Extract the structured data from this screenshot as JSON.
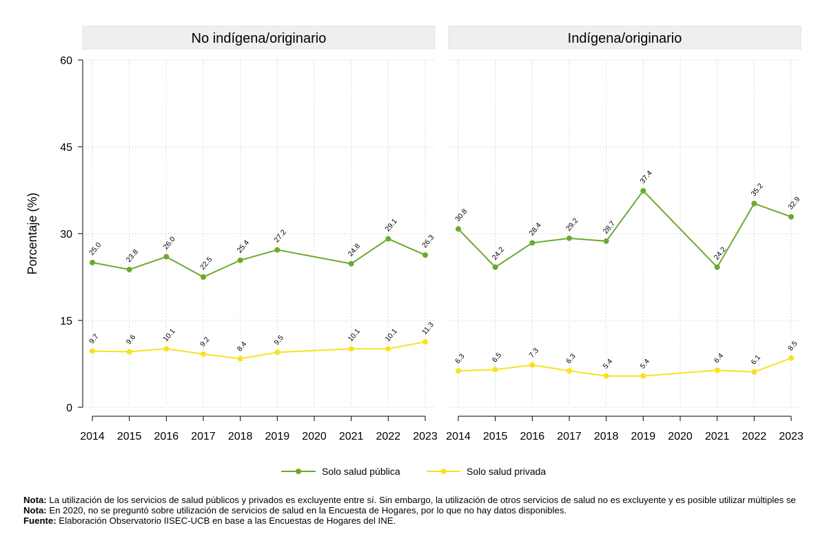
{
  "chart_data": {
    "type": "line",
    "ylabel": "Porcentaje (%)",
    "ylim": [
      0,
      60
    ],
    "yticks": [
      0,
      15,
      30,
      45,
      60
    ],
    "categories": [
      "2014",
      "2015",
      "2016",
      "2017",
      "2018",
      "2019",
      "2020",
      "2021",
      "2022",
      "2023"
    ],
    "grid": true,
    "legend_position": "bottom",
    "series_styles": {
      "Solo salud pública": {
        "color": "#6aaa2c"
      },
      "Solo salud privada": {
        "color": "#f7e21f"
      }
    },
    "panels": [
      {
        "title": "No indígena/originario",
        "series": [
          {
            "name": "Solo salud pública",
            "values": [
              25.0,
              23.8,
              26.0,
              22.5,
              25.4,
              27.2,
              null,
              24.8,
              29.1,
              26.3
            ],
            "labels": [
              "25.0",
              "23.8",
              "26.0",
              "22.5",
              "25.4",
              "27.2",
              null,
              "24.8",
              "29.1",
              "26.3"
            ]
          },
          {
            "name": "Solo salud privada",
            "values": [
              9.7,
              9.6,
              10.1,
              9.2,
              8.4,
              9.5,
              null,
              10.1,
              10.1,
              11.3
            ],
            "labels": [
              "9.7",
              "9.6",
              "10.1",
              "9.2",
              "8.4",
              "9.5",
              null,
              "10.1",
              "10.1",
              "11.3"
            ]
          }
        ]
      },
      {
        "title": "Indígena/originario",
        "series": [
          {
            "name": "Solo salud pública",
            "values": [
              30.8,
              24.2,
              28.4,
              29.2,
              28.7,
              37.4,
              null,
              24.2,
              35.2,
              32.9
            ],
            "labels": [
              "30.8",
              "24.2",
              "28.4",
              "29.2",
              "28.7",
              "37.4",
              null,
              "24.2",
              "35.2",
              "32.9"
            ]
          },
          {
            "name": "Solo salud privada",
            "values": [
              6.3,
              6.5,
              7.3,
              6.3,
              5.4,
              5.4,
              null,
              6.4,
              6.1,
              8.5
            ],
            "labels": [
              "6.3",
              "6.5",
              "7.3",
              "6.3",
              "5.4",
              "5.4",
              null,
              "6.4",
              "6.1",
              "8.5"
            ]
          }
        ]
      }
    ],
    "legend": [
      "Solo salud pública",
      "Solo salud privada"
    ]
  },
  "notes": [
    {
      "label": "Nota:",
      "text": " La utilización de los servicios de salud públicos y privados es excluyente entre sí. Sin embargo, la utilización de otros servicios de salud no es excluyente y es posible utilizar múltiples se"
    },
    {
      "label": "Nota:",
      "text": " En 2020, no se preguntó sobre utilización de servicios de salud en la Encuesta de Hogares, por lo que no hay datos disponibles."
    },
    {
      "label": "Fuente:",
      "text": " Elaboración Observatorio IISEC-UCB en base a las Encuestas de Hogares del INE."
    }
  ]
}
